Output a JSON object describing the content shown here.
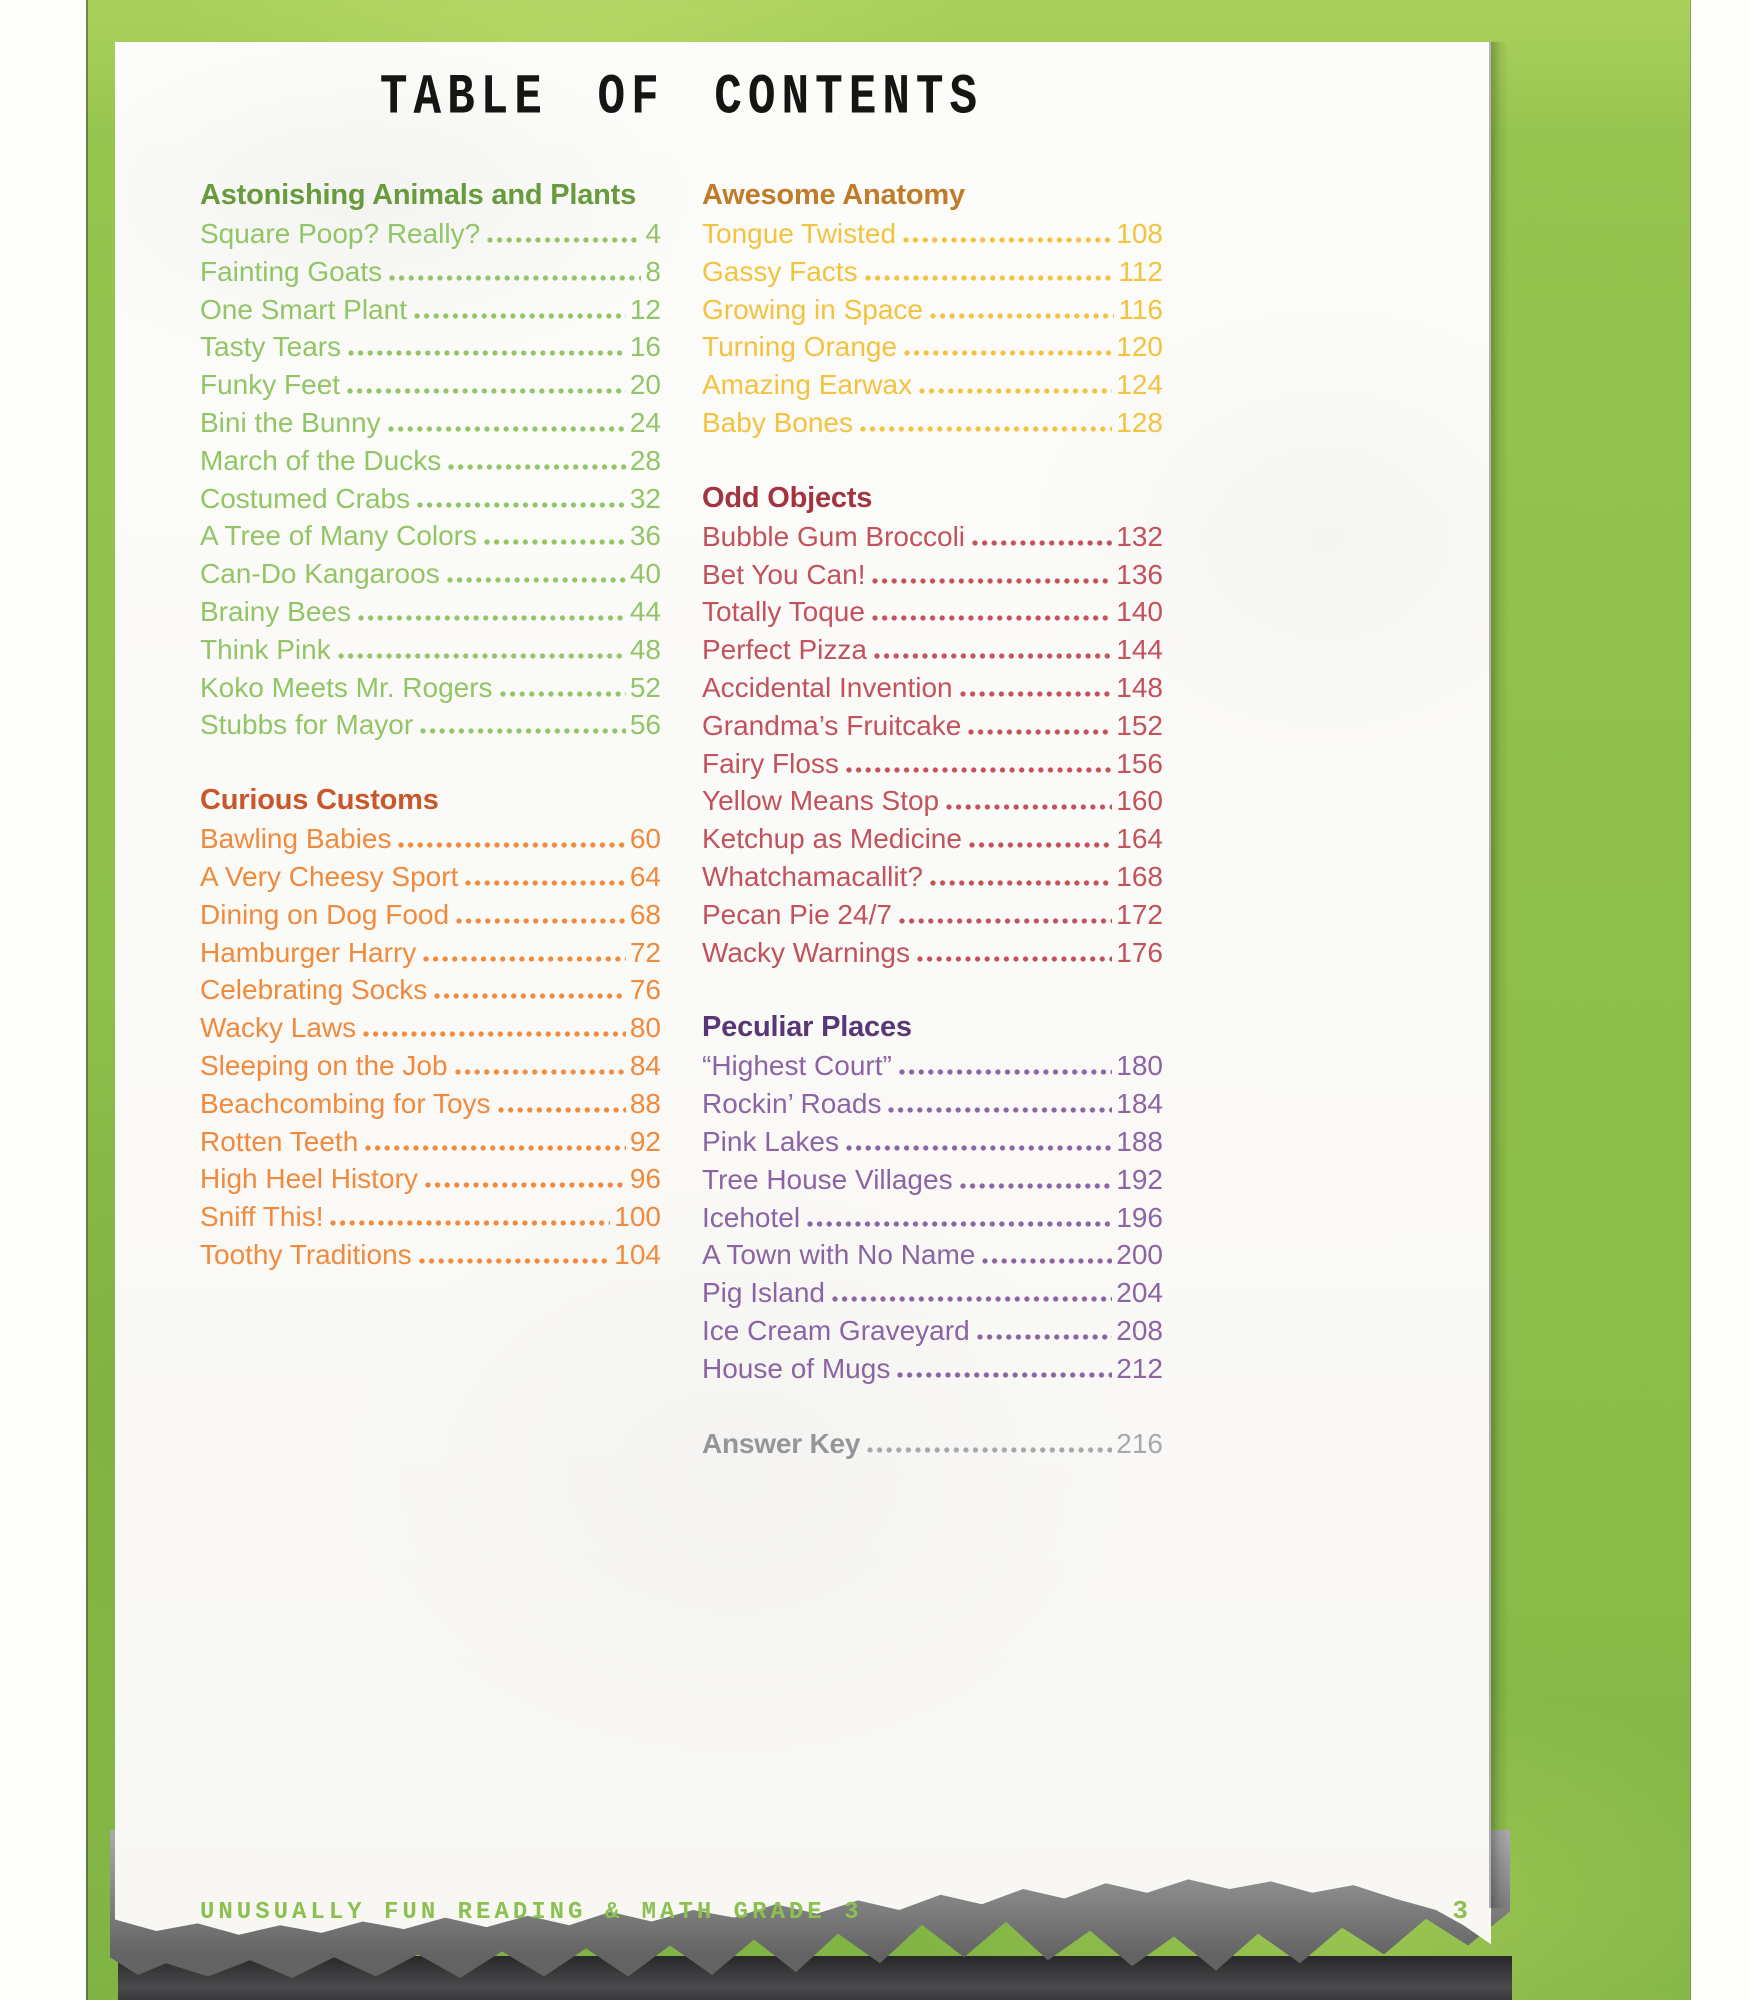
{
  "page": {
    "title": "TABLE OF CONTENTS",
    "footer": "UNUSUALLY FUN READING & MATH GRADE 3",
    "page_number": "3"
  },
  "colors": {
    "frame_green": "#8fbf4b",
    "title_black": "#161514",
    "footer_green": "#8cc152",
    "paper": "#fbfbf8"
  },
  "themes": {
    "green": {
      "heading": "#679b3c",
      "entry": "#92c566"
    },
    "orange": {
      "heading": "#c8572c",
      "entry": "#f08a3d"
    },
    "yellow": {
      "heading": "#bf7c29",
      "entry": "#f3c33f"
    },
    "red": {
      "heading": "#a2333f",
      "entry": "#c2525c"
    },
    "purple": {
      "heading": "#593677",
      "entry": "#8a64a4"
    },
    "gray": {
      "heading": "#95959a",
      "entry": "#a8a8ac"
    }
  },
  "columns": [
    {
      "sections": [
        {
          "title": "Astonishing Animals and Plants",
          "theme": "green",
          "entries": [
            {
              "label": "Square Poop? Really?",
              "page": "4"
            },
            {
              "label": "Fainting Goats",
              "page": "8"
            },
            {
              "label": "One Smart Plant",
              "page": "12"
            },
            {
              "label": "Tasty Tears",
              "page": "16"
            },
            {
              "label": "Funky Feet",
              "page": "20"
            },
            {
              "label": "Bini the Bunny",
              "page": "24"
            },
            {
              "label": "March of the Ducks",
              "page": "28"
            },
            {
              "label": "Costumed Crabs",
              "page": "32"
            },
            {
              "label": "A Tree of Many Colors",
              "page": "36"
            },
            {
              "label": "Can-Do Kangaroos",
              "page": "40"
            },
            {
              "label": "Brainy Bees",
              "page": "44"
            },
            {
              "label": "Think Pink",
              "page": "48"
            },
            {
              "label": "Koko Meets Mr. Rogers",
              "page": "52"
            },
            {
              "label": "Stubbs for Mayor",
              "page": "56"
            }
          ]
        },
        {
          "title": "Curious Customs",
          "theme": "orange",
          "entries": [
            {
              "label": "Bawling Babies",
              "page": "60"
            },
            {
              "label": "A Very Cheesy Sport",
              "page": "64"
            },
            {
              "label": "Dining on Dog Food",
              "page": "68"
            },
            {
              "label": "Hamburger Harry",
              "page": "72"
            },
            {
              "label": "Celebrating Socks",
              "page": "76"
            },
            {
              "label": "Wacky Laws",
              "page": "80"
            },
            {
              "label": "Sleeping on the Job",
              "page": "84"
            },
            {
              "label": "Beachcombing for Toys",
              "page": "88"
            },
            {
              "label": "Rotten Teeth",
              "page": "92"
            },
            {
              "label": "High Heel History",
              "page": "96"
            },
            {
              "label": "Sniff This!",
              "page": "100"
            },
            {
              "label": "Toothy Traditions",
              "page": "104"
            }
          ]
        }
      ]
    },
    {
      "sections": [
        {
          "title": "Awesome Anatomy",
          "theme": "yellow",
          "entries": [
            {
              "label": "Tongue Twisted",
              "page": "108"
            },
            {
              "label": "Gassy Facts",
              "page": "112"
            },
            {
              "label": "Growing in Space",
              "page": "116"
            },
            {
              "label": "Turning Orange",
              "page": "120"
            },
            {
              "label": "Amazing Earwax",
              "page": "124"
            },
            {
              "label": "Baby Bones",
              "page": "128"
            }
          ]
        },
        {
          "title": "Odd Objects",
          "theme": "red",
          "entries": [
            {
              "label": "Bubble Gum Broccoli",
              "page": "132"
            },
            {
              "label": "Bet You Can!",
              "page": "136"
            },
            {
              "label": "Totally Toque",
              "page": "140"
            },
            {
              "label": "Perfect Pizza",
              "page": "144"
            },
            {
              "label": "Accidental Invention",
              "page": "148"
            },
            {
              "label": "Grandma’s Fruitcake",
              "page": "152"
            },
            {
              "label": "Fairy Floss",
              "page": "156"
            },
            {
              "label": "Yellow Means Stop",
              "page": "160"
            },
            {
              "label": "Ketchup as Medicine",
              "page": "164"
            },
            {
              "label": "Whatchamacallit?",
              "page": "168"
            },
            {
              "label": "Pecan Pie 24/7",
              "page": "172"
            },
            {
              "label": "Wacky Warnings",
              "page": "176"
            }
          ]
        },
        {
          "title": "Peculiar Places",
          "theme": "purple",
          "entries": [
            {
              "label": "“Highest Court”",
              "page": "180"
            },
            {
              "label": "Rockin’ Roads",
              "page": "184"
            },
            {
              "label": "Pink Lakes",
              "page": "188"
            },
            {
              "label": "Tree House Villages",
              "page": "192"
            },
            {
              "label": "Icehotel",
              "page": "196"
            },
            {
              "label": "A Town with No Name",
              "page": "200"
            },
            {
              "label": "Pig Island",
              "page": "204"
            },
            {
              "label": "Ice Cream Graveyard",
              "page": "208"
            },
            {
              "label": "House of Mugs",
              "page": "212"
            }
          ]
        },
        {
          "title": "",
          "theme": "gray",
          "bold": true,
          "entries": [
            {
              "label": "Answer Key",
              "page": "216"
            }
          ]
        }
      ]
    }
  ]
}
